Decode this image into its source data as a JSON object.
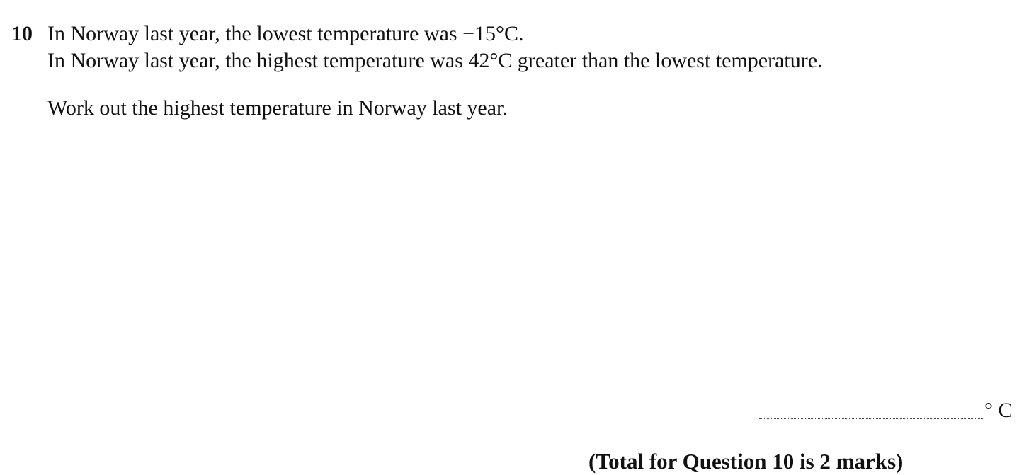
{
  "question": {
    "number": "10",
    "lines": [
      "In Norway last year, the lowest temperature was −15°C.",
      "In Norway last year, the highest temperature was 42°C greater than the lowest temperature.",
      "Work out the highest temperature in Norway last year."
    ]
  },
  "answer": {
    "value": "",
    "unit": "° C"
  },
  "footer": {
    "total_marks": "(Total for Question 10 is 2 marks)"
  }
}
